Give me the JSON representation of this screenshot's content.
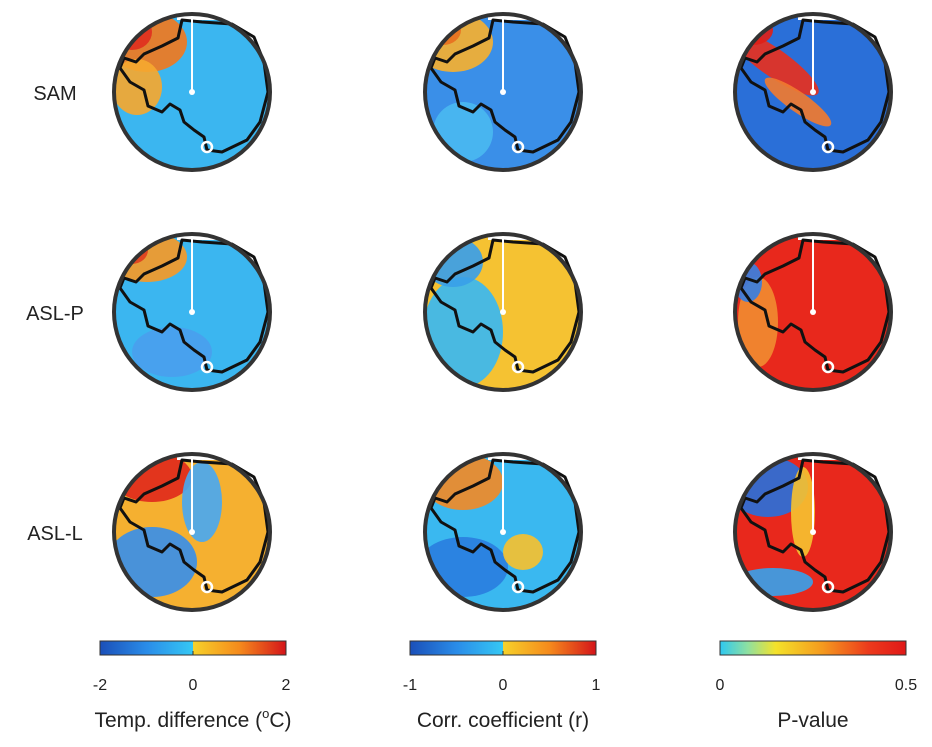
{
  "rows": [
    "SAM",
    "ASL-P",
    "ASL-L"
  ],
  "colorbars": [
    {
      "label": {
        "text": "Temp. difference (",
        "sup": "o",
        "tail": "C)"
      },
      "lim": [
        -2,
        2
      ],
      "ticks": [
        -2,
        0,
        2
      ]
    },
    {
      "label": {
        "text": "Corr. coefficient (r)"
      },
      "lim": [
        -1,
        1
      ],
      "ticks": [
        -1,
        0,
        1
      ]
    },
    {
      "label": {
        "text": "P-value"
      },
      "lim": [
        0,
        0.5
      ],
      "ticks": [
        0,
        0.5
      ]
    }
  ]
}
